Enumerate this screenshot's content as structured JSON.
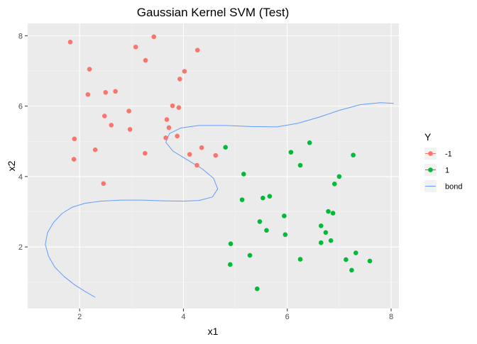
{
  "chart_data": {
    "type": "scatter",
    "title": "Gaussian Kernel SVM (Test)",
    "xlabel": "x1",
    "ylabel": "x2",
    "xlim": [
      1.0,
      8.15
    ],
    "ylim": [
      0.25,
      8.35
    ],
    "xticks": [
      2,
      4,
      6,
      8
    ],
    "yticks": [
      2,
      4,
      6,
      8
    ],
    "grid": true,
    "legend": {
      "title": "Y",
      "position": "right",
      "entries": [
        {
          "label": "-1",
          "color": "#F8766D",
          "kind": "point"
        },
        {
          "label": "1",
          "color": "#00BA38",
          "kind": "point"
        },
        {
          "label": "bond",
          "color": "#619CFF",
          "kind": "line"
        }
      ]
    },
    "series": [
      {
        "name": "-1",
        "color": "#F8766D",
        "points": [
          [
            1.82,
            7.82
          ],
          [
            2.19,
            7.05
          ],
          [
            3.43,
            7.97
          ],
          [
            3.08,
            7.68
          ],
          [
            3.27,
            7.3
          ],
          [
            4.27,
            7.59
          ],
          [
            4.02,
            6.99
          ],
          [
            3.93,
            6.77
          ],
          [
            2.16,
            6.33
          ],
          [
            2.5,
            6.39
          ],
          [
            2.69,
            6.42
          ],
          [
            2.95,
            5.86
          ],
          [
            3.91,
            5.96
          ],
          [
            3.79,
            6.01
          ],
          [
            2.48,
            5.72
          ],
          [
            2.61,
            5.46
          ],
          [
            2.97,
            5.34
          ],
          [
            3.68,
            5.62
          ],
          [
            3.72,
            5.39
          ],
          [
            3.88,
            5.15
          ],
          [
            3.66,
            5.1
          ],
          [
            1.9,
            5.07
          ],
          [
            2.3,
            4.76
          ],
          [
            1.89,
            4.49
          ],
          [
            3.26,
            4.66
          ],
          [
            4.12,
            4.63
          ],
          [
            4.35,
            4.82
          ],
          [
            4.26,
            4.32
          ],
          [
            4.62,
            4.6
          ],
          [
            2.46,
            3.8
          ]
        ]
      },
      {
        "name": "1",
        "color": "#00BA38",
        "points": [
          [
            4.81,
            4.83
          ],
          [
            6.07,
            4.69
          ],
          [
            6.43,
            4.96
          ],
          [
            7.27,
            4.61
          ],
          [
            6.25,
            4.32
          ],
          [
            5.16,
            4.07
          ],
          [
            7.0,
            4.0
          ],
          [
            6.91,
            3.79
          ],
          [
            5.53,
            3.39
          ],
          [
            5.66,
            3.44
          ],
          [
            5.13,
            3.34
          ],
          [
            6.79,
            3.01
          ],
          [
            6.88,
            2.96
          ],
          [
            5.94,
            2.88
          ],
          [
            5.47,
            2.72
          ],
          [
            6.65,
            2.6
          ],
          [
            5.6,
            2.47
          ],
          [
            5.96,
            2.35
          ],
          [
            6.74,
            2.41
          ],
          [
            4.91,
            2.09
          ],
          [
            6.65,
            2.12
          ],
          [
            6.84,
            2.18
          ],
          [
            5.28,
            1.76
          ],
          [
            7.32,
            1.83
          ],
          [
            6.25,
            1.65
          ],
          [
            7.13,
            1.64
          ],
          [
            7.59,
            1.6
          ],
          [
            4.9,
            1.5
          ],
          [
            7.24,
            1.34
          ],
          [
            5.42,
            0.81
          ]
        ]
      }
    ],
    "boundary": {
      "name": "bond",
      "color": "#619CFF",
      "points": [
        [
          2.3,
          0.57
        ],
        [
          2.1,
          0.74
        ],
        [
          1.9,
          0.93
        ],
        [
          1.7,
          1.16
        ],
        [
          1.52,
          1.43
        ],
        [
          1.4,
          1.74
        ],
        [
          1.34,
          2.07
        ],
        [
          1.38,
          2.4
        ],
        [
          1.5,
          2.7
        ],
        [
          1.66,
          2.95
        ],
        [
          1.86,
          3.13
        ],
        [
          2.1,
          3.24
        ],
        [
          2.4,
          3.3
        ],
        [
          2.8,
          3.33
        ],
        [
          3.2,
          3.33
        ],
        [
          3.6,
          3.31
        ],
        [
          4.0,
          3.3
        ],
        [
          4.3,
          3.32
        ],
        [
          4.56,
          3.42
        ],
        [
          4.66,
          3.65
        ],
        [
          4.58,
          3.95
        ],
        [
          4.36,
          4.22
        ],
        [
          4.08,
          4.47
        ],
        [
          3.8,
          4.72
        ],
        [
          3.66,
          4.97
        ],
        [
          3.73,
          5.22
        ],
        [
          3.95,
          5.38
        ],
        [
          4.3,
          5.45
        ],
        [
          4.8,
          5.45
        ],
        [
          5.3,
          5.42
        ],
        [
          5.8,
          5.41
        ],
        [
          6.2,
          5.51
        ],
        [
          6.6,
          5.68
        ],
        [
          7.0,
          5.88
        ],
        [
          7.4,
          6.04
        ],
        [
          7.8,
          6.1
        ],
        [
          8.05,
          6.08
        ]
      ]
    }
  }
}
